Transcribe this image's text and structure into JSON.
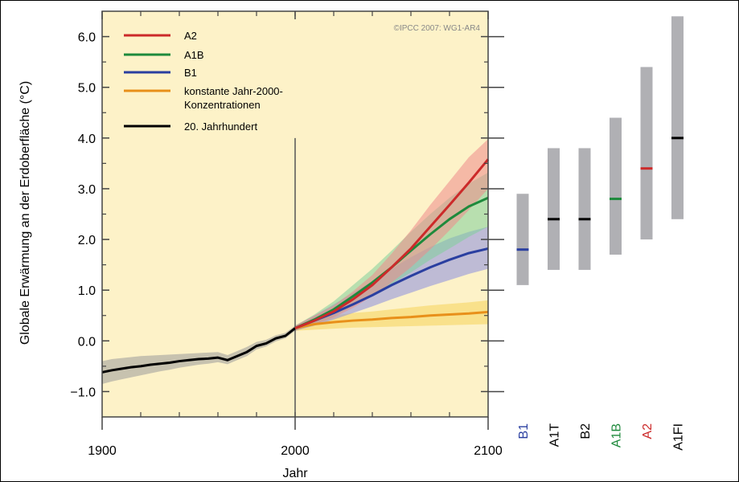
{
  "chart_data": {
    "type": "line",
    "xlabel": "Jahr",
    "ylabel": "Globale Erwärmung an der Erdoberfläche (°C)",
    "credit": "©IPCC 2007: WG1-AR4",
    "xlim": [
      1900,
      2100
    ],
    "ylim": [
      -1.5,
      6.5
    ],
    "x_ticks": [
      1900,
      2000,
      2100
    ],
    "x_tick_labels": [
      "1900",
      "2000",
      "2100"
    ],
    "y_ticks": [
      -1.0,
      0.0,
      1.0,
      2.0,
      3.0,
      4.0,
      5.0,
      6.0
    ],
    "y_tick_labels": [
      "−1.0",
      "0.0",
      "1.0",
      "2.0",
      "3.0",
      "4.0",
      "5.0",
      "6.0"
    ],
    "divider_year": 2000,
    "legend_position": "top-left",
    "legend": [
      {
        "name": "A2",
        "color": "#cc2a2a"
      },
      {
        "name": "A1B",
        "color": "#1e8a3c"
      },
      {
        "name": "B1",
        "color": "#2a3fa0"
      },
      {
        "name": "konstante Jahr-2000-",
        "name2": "Konzentrationen",
        "color": "#e8901a"
      },
      {
        "name": "20. Jahrhundert",
        "color": "#000000"
      }
    ],
    "series": [
      {
        "name": "20. Jahrhundert",
        "color": "#000000",
        "band_color": "#9a9a9a",
        "x": [
          1900,
          1905,
          1910,
          1915,
          1920,
          1925,
          1930,
          1935,
          1940,
          1945,
          1950,
          1955,
          1960,
          1965,
          1970,
          1975,
          1980,
          1985,
          1990,
          1995,
          2000
        ],
        "y": [
          -0.62,
          -0.58,
          -0.55,
          -0.52,
          -0.5,
          -0.47,
          -0.45,
          -0.43,
          -0.4,
          -0.38,
          -0.36,
          -0.35,
          -0.33,
          -0.38,
          -0.3,
          -0.22,
          -0.1,
          -0.05,
          0.05,
          0.1,
          0.25
        ],
        "lower": [
          -0.85,
          -0.8,
          -0.76,
          -0.72,
          -0.68,
          -0.64,
          -0.6,
          -0.57,
          -0.53,
          -0.5,
          -0.47,
          -0.45,
          -0.42,
          -0.46,
          -0.38,
          -0.3,
          -0.17,
          -0.11,
          -0.01,
          0.05,
          0.2
        ],
        "upper": [
          -0.4,
          -0.36,
          -0.34,
          -0.32,
          -0.3,
          -0.29,
          -0.28,
          -0.27,
          -0.26,
          -0.25,
          -0.24,
          -0.23,
          -0.22,
          -0.28,
          -0.2,
          -0.12,
          -0.02,
          0.02,
          0.11,
          0.16,
          0.3
        ]
      },
      {
        "name": "konstante Jahr-2000-Konzentrationen",
        "color": "#e8901a",
        "band_color": "#f5d45a",
        "x": [
          2000,
          2010,
          2020,
          2030,
          2040,
          2050,
          2060,
          2070,
          2080,
          2090,
          2100
        ],
        "y": [
          0.25,
          0.33,
          0.37,
          0.4,
          0.42,
          0.45,
          0.47,
          0.5,
          0.52,
          0.54,
          0.57
        ],
        "lower": [
          0.2,
          0.22,
          0.24,
          0.26,
          0.27,
          0.28,
          0.29,
          0.3,
          0.31,
          0.32,
          0.33
        ],
        "upper": [
          0.3,
          0.45,
          0.5,
          0.55,
          0.58,
          0.62,
          0.66,
          0.7,
          0.73,
          0.76,
          0.8
        ]
      },
      {
        "name": "B1",
        "color": "#2a3fa0",
        "band_color": "#8a8ee0",
        "x": [
          2000,
          2010,
          2020,
          2030,
          2040,
          2050,
          2060,
          2070,
          2080,
          2090,
          2100
        ],
        "y": [
          0.25,
          0.4,
          0.55,
          0.72,
          0.9,
          1.1,
          1.28,
          1.45,
          1.6,
          1.73,
          1.82
        ],
        "lower": [
          0.2,
          0.3,
          0.42,
          0.55,
          0.68,
          0.82,
          0.95,
          1.08,
          1.2,
          1.32,
          1.42
        ],
        "upper": [
          0.3,
          0.5,
          0.72,
          0.95,
          1.18,
          1.42,
          1.65,
          1.85,
          2.02,
          2.15,
          2.25
        ]
      },
      {
        "name": "A1B",
        "color": "#1e8a3c",
        "band_color": "#7fcf9a",
        "x": [
          2000,
          2010,
          2020,
          2030,
          2040,
          2050,
          2060,
          2070,
          2080,
          2090,
          2100
        ],
        "y": [
          0.25,
          0.42,
          0.62,
          0.88,
          1.15,
          1.45,
          1.78,
          2.1,
          2.4,
          2.65,
          2.82
        ],
        "lower": [
          0.2,
          0.32,
          0.48,
          0.68,
          0.9,
          1.12,
          1.35,
          1.6,
          1.82,
          2.05,
          2.25
        ],
        "upper": [
          0.3,
          0.52,
          0.78,
          1.1,
          1.42,
          1.78,
          2.15,
          2.5,
          2.82,
          3.1,
          3.32
        ]
      },
      {
        "name": "A2",
        "color": "#cc2a2a",
        "band_color": "#ee8a8a",
        "x": [
          2000,
          2010,
          2020,
          2030,
          2040,
          2050,
          2060,
          2070,
          2080,
          2090,
          2100
        ],
        "y": [
          0.25,
          0.4,
          0.58,
          0.82,
          1.1,
          1.45,
          1.82,
          2.25,
          2.68,
          3.12,
          3.58
        ],
        "lower": [
          0.2,
          0.32,
          0.46,
          0.65,
          0.88,
          1.15,
          1.45,
          1.8,
          2.18,
          2.58,
          3.0
        ],
        "upper": [
          0.3,
          0.5,
          0.7,
          0.98,
          1.3,
          1.72,
          2.18,
          2.68,
          3.15,
          3.62,
          3.98
        ]
      }
    ],
    "ranges": [
      {
        "label": "B1",
        "low": 1.1,
        "high": 2.9,
        "best": 1.8,
        "color": "#2a3fa0"
      },
      {
        "label": "A1T",
        "low": 1.4,
        "high": 3.8,
        "best": 2.4,
        "color": "#000000"
      },
      {
        "label": "B2",
        "low": 1.4,
        "high": 3.8,
        "best": 2.4,
        "color": "#000000"
      },
      {
        "label": "A1B",
        "low": 1.7,
        "high": 4.4,
        "best": 2.8,
        "color": "#1e8a3c"
      },
      {
        "label": "A2",
        "low": 2.0,
        "high": 5.4,
        "best": 3.4,
        "color": "#cc2a2a"
      },
      {
        "label": "A1FI",
        "low": 2.4,
        "high": 6.4,
        "best": 4.0,
        "color": "#000000"
      }
    ]
  }
}
